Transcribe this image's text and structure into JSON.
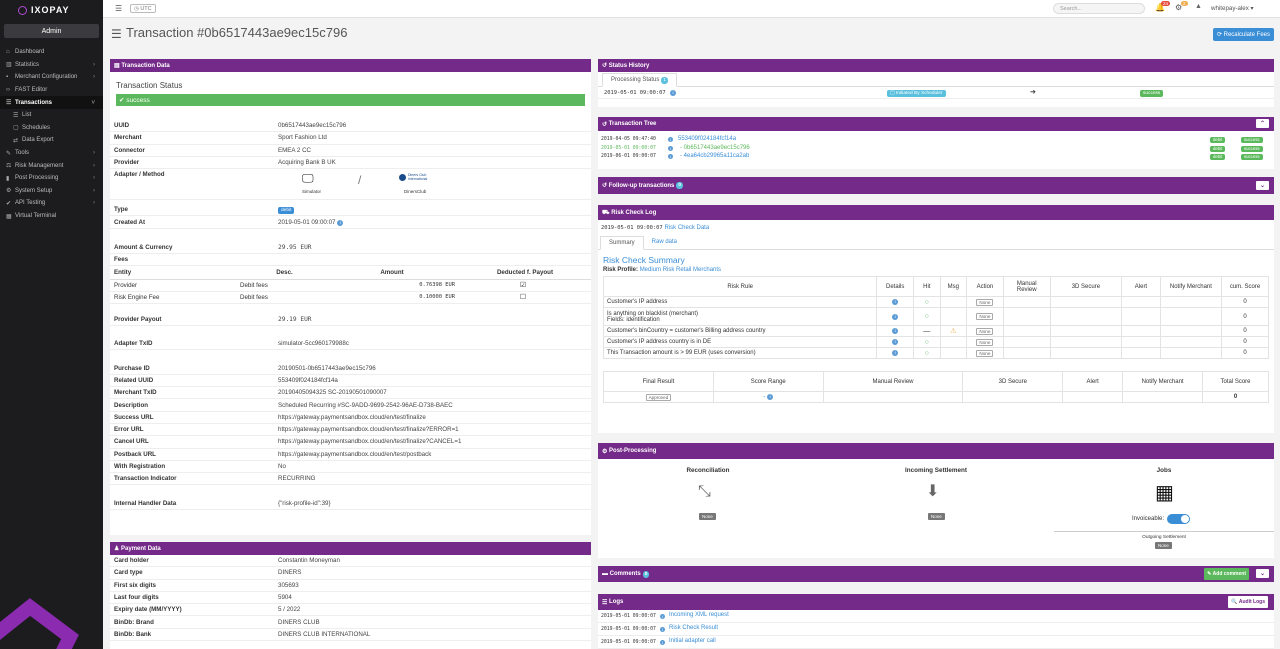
{
  "brand": {
    "logo_text": "IXOPAY",
    "admin": "Admin"
  },
  "nav": [
    {
      "icon": "⌂",
      "label": "Dashboard",
      "name": "nav-dashboard"
    },
    {
      "icon": "▥",
      "label": "Statistics",
      "caret": "›",
      "name": "nav-statistics"
    },
    {
      "icon": "▪",
      "label": "Merchant Configuration",
      "caret": "›",
      "name": "nav-merchant-configuration"
    },
    {
      "icon": "‹›",
      "label": "FAST Editor",
      "name": "nav-fast-editor"
    },
    {
      "icon": "☰",
      "label": "Transactions",
      "caret": "˅",
      "active": true,
      "name": "nav-transactions"
    },
    {
      "icon": "☰",
      "label": "List",
      "sub": true,
      "name": "nav-transactions-list"
    },
    {
      "icon": "▢",
      "label": "Schedules",
      "sub": true,
      "name": "nav-transactions-schedules"
    },
    {
      "icon": "⇄",
      "label": "Data Export",
      "sub": true,
      "name": "nav-transactions-data-export"
    },
    {
      "icon": "✎",
      "label": "Tools",
      "caret": "›",
      "name": "nav-tools"
    },
    {
      "icon": "⚖",
      "label": "Risk Management",
      "caret": "›",
      "name": "nav-risk-management"
    },
    {
      "icon": "▮",
      "label": "Post Processing",
      "caret": "›",
      "name": "nav-post-processing"
    },
    {
      "icon": "⚙",
      "label": "System Setup",
      "caret": "›",
      "name": "nav-system-setup"
    },
    {
      "icon": "✔",
      "label": "API Testing",
      "caret": "›",
      "name": "nav-api-testing"
    },
    {
      "icon": "▦",
      "label": "Virtual Terminal",
      "name": "nav-virtual-terminal"
    }
  ],
  "topbar": {
    "utc": "UTC",
    "search_placeholder": "Search...",
    "badge1": "24",
    "badge2": "2",
    "user": "whitepay-alex ▾"
  },
  "page": {
    "title": "Transaction #0b6517443ae9ec15c796",
    "recalc": "Recalculate Fees"
  },
  "txdata": {
    "header": "Transaction Data",
    "status_title": "Transaction Status",
    "status": "success",
    "rows1": [
      {
        "k": "UUID",
        "v": "0b6517443ae9ec15c796"
      },
      {
        "k": "Merchant",
        "v": "Sport Fashion Ltd"
      },
      {
        "k": "Connector",
        "v": "EMEA 2 CC",
        "link": true
      },
      {
        "k": "Provider",
        "v": "Acquiring Bank B UK"
      }
    ],
    "adapter_label": "Adapter / Method",
    "simulator": "Simulator",
    "diners": "DinersClub",
    "diners_logo": "Diners Club International",
    "type_k": "Type",
    "type_v": "debit",
    "created_k": "Created At",
    "created_v": "2019-05-01 09:00:07",
    "amount_k": "Amount & Currency",
    "amount_v": "29.95 EUR",
    "fees_k": "Fees",
    "fee_headers": [
      "Entity",
      "Desc.",
      "Amount",
      "Deducted f. Payout"
    ],
    "fee_rows": [
      {
        "entity": "Provider",
        "desc": "Debit fees",
        "amount": "0.76398 EUR",
        "deducted": "☑"
      },
      {
        "entity": "Risk Engine Fee",
        "desc": "Debit fees",
        "amount": "0.10000 EUR",
        "deducted": "☐"
      }
    ],
    "payout_k": "Provider Payout",
    "payout_v": "29.19 EUR",
    "adapter_tx_k": "Adapter TxID",
    "adapter_tx_v": "simulator-5cc960179988c",
    "rows2": [
      {
        "k": "Purchase ID",
        "v": "20190501-0b6517443ae9ec15c796"
      },
      {
        "k": "Related UUID",
        "v": "553409f024184fcf14a",
        "link": true
      },
      {
        "k": "Merchant TxID",
        "v": "20190405094325 SC-20190501090007"
      },
      {
        "k": "Description",
        "v": "Scheduled Recurring #SC-9ADD-9699-2542-96AE-D738-BAEC"
      },
      {
        "k": "Success URL",
        "v": "https://gateway.paymentsandbox.cloud/en/test/finalize"
      },
      {
        "k": "Error URL",
        "v": "https://gateway.paymentsandbox.cloud/en/test/finalize?ERROR=1"
      },
      {
        "k": "Cancel URL",
        "v": "https://gateway.paymentsandbox.cloud/en/test/finalize?CANCEL=1"
      },
      {
        "k": "Postback URL",
        "v": "https://gateway.paymentsandbox.cloud/en/test/postback"
      },
      {
        "k": "With Registration",
        "v": "No"
      },
      {
        "k": "Transaction Indicator",
        "v": "RECURRING"
      }
    ],
    "handler_k": "Internal Handler Data",
    "handler_v": "{\"risk-profile-id\":39}"
  },
  "payment": {
    "header": "Payment Data",
    "rows": [
      {
        "k": "Card holder",
        "v": "Constantin Moneyman"
      },
      {
        "k": "Card type",
        "v": "DINERS"
      },
      {
        "k": "First six digits",
        "v": "305693"
      },
      {
        "k": "Last four digits",
        "v": "5904"
      },
      {
        "k": "Expiry date (MM/YYYY)",
        "v": "5 / 2022"
      },
      {
        "k": "BinDb: Brand",
        "v": "DINERS CLUB"
      },
      {
        "k": "BinDb: Bank",
        "v": "DINERS CLUB INTERNATIONAL"
      }
    ]
  },
  "status_history": {
    "header": "Status History",
    "tab": "Processing Status",
    "tab_count": "1",
    "date": "2019-05-01 09:00:07",
    "label": "Initiated By Scheduler",
    "arrow": "➔",
    "status": "success"
  },
  "tree": {
    "header": "Transaction Tree",
    "rows": [
      {
        "date": "2019-04-05 09:47:40",
        "id": "553409f024184fcf14a",
        "type": "debit",
        "status": "success"
      },
      {
        "date": "2019-05-01 09:00:07",
        "id": "- 0b6517443ae9ec15c796",
        "type": "debit",
        "status": "success"
      },
      {
        "date": "2019-06-01 09:00:07",
        "id": "- 4ea64cb29965a11ca2ab",
        "type": "debit",
        "status": "success"
      }
    ]
  },
  "followup": {
    "header": "Follow-up transactions",
    "count": "0"
  },
  "risk": {
    "header": "Risk Check Log",
    "date": "2019-05-01 09:00:07",
    "link": "Risk Check Data",
    "tabs": [
      "Summary",
      "Raw data"
    ],
    "summary_title": "Risk Check Summary",
    "profile_label": "Risk Profile:",
    "profile": "Medium Risk Retail Merchants",
    "headers": [
      "Risk Rule",
      "Details",
      "Hit",
      "Msg",
      "Action",
      "Manual Review",
      "3D Secure",
      "Alert",
      "Notify Merchant",
      "cum. Score"
    ],
    "rows": [
      {
        "rule": "Customer's IP address",
        "hit": "○",
        "msg": "",
        "action": "None",
        "score": "0"
      },
      {
        "rule": "Is anything on blacklist (merchant)",
        "rule2": "Fields: identification",
        "hit": "○",
        "msg": "",
        "action": "None",
        "score": "0"
      },
      {
        "rule": "Customer's binCountry = customer's Billing address country",
        "hit": "—",
        "msg": "⚠",
        "action": "None",
        "score": "0"
      },
      {
        "rule": "Customer's IP address country is in DE",
        "hit": "○",
        "msg": "",
        "action": "None",
        "score": "0"
      },
      {
        "rule": "This Transaction amount is > 99 EUR (uses conversion)",
        "hit": "○",
        "msg": "",
        "action": "None",
        "score": "0"
      }
    ],
    "final_headers": [
      "Final Result",
      "Score Range",
      "Manual Review",
      "3D Secure",
      "Alert",
      "Notify Merchant",
      "Total Score"
    ],
    "final_result": "Approved",
    "score_range": "- ",
    "total": "0"
  },
  "post": {
    "header": "Post-Processing",
    "reconciliation": "Reconciliation",
    "incoming": "Incoming Settlement",
    "jobs": "Jobs",
    "none": "None",
    "invoiceable": "Invoiceable:",
    "outgoing": "Outgoing Settlement"
  },
  "comments": {
    "header": "Comments",
    "count": "0",
    "add": "Add comment"
  },
  "logs": {
    "header": "Logs",
    "audit": "Audit Logs",
    "rows": [
      {
        "date": "2019-05-01 09:00:07",
        "text": "Incoming XML request"
      },
      {
        "date": "2019-05-01 09:00:07",
        "text": "Risk Check Result"
      },
      {
        "date": "2019-05-01 09:00:07",
        "text": "Initial adapter call"
      }
    ]
  },
  "colors": {
    "purple": "#742a88",
    "green": "#5cb85c",
    "blue": "#3a8ed6",
    "sidebar": "#1c1c1f"
  }
}
